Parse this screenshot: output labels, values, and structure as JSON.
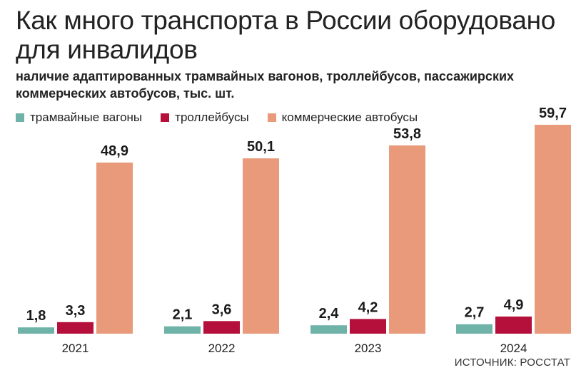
{
  "header": {
    "title": "Как много транспорта в России оборудовано для инвалидов",
    "subtitle": "наличие адаптированных трамвайных вагонов, троллейбусов, пассажирских коммерческих автобусов, тыс. шт."
  },
  "source": "ИСТОЧНИК: РОССТАТ",
  "colors": {
    "tram": "#6fb3a8",
    "trolleybus": "#b5103c",
    "bus": "#e99a7b"
  },
  "chart_data": {
    "type": "bar",
    "categories": [
      "2021",
      "2022",
      "2023",
      "2024"
    ],
    "series": [
      {
        "name": "трамвайные вагоны",
        "values": [
          1.8,
          2.1,
          2.4,
          2.7
        ],
        "labels": [
          "1,8",
          "2,1",
          "2,4",
          "2,7"
        ]
      },
      {
        "name": "троллейбусы",
        "values": [
          3.3,
          3.6,
          4.2,
          4.9
        ],
        "labels": [
          "3,3",
          "3,6",
          "4,2",
          "4,9"
        ]
      },
      {
        "name": "коммерческие автобусы",
        "values": [
          48.9,
          50.1,
          53.8,
          59.7
        ],
        "labels": [
          "48,9",
          "50,1",
          "53,8",
          "59,7"
        ]
      }
    ],
    "ylim": [
      0,
      59.7
    ],
    "grid": false,
    "legend": "top-left"
  }
}
